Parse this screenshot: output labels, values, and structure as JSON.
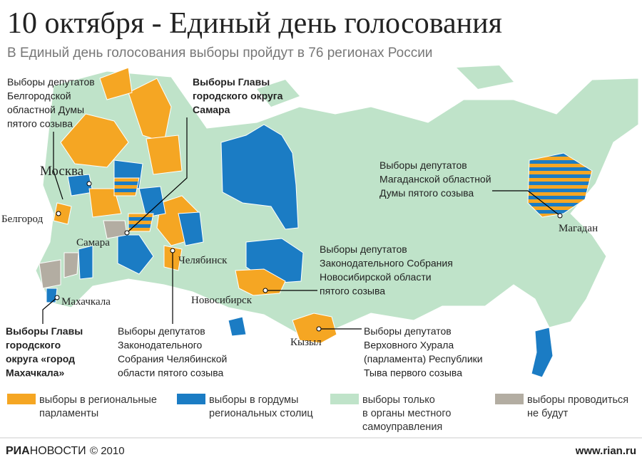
{
  "header": {
    "title": "10 октября - Единый день голосования",
    "subtitle": "В Единый день голосования выборы пройдут в 76 регионах России"
  },
  "map": {
    "cities": [
      "Москва",
      "Белгород",
      "Самара",
      "Махачкала",
      "Челябинск",
      "Новосибирск",
      "Кызыл",
      "Магадан"
    ],
    "annotations": [
      [
        "Выборы депутатов",
        "Белгородской",
        "областной Думы",
        "пятого созыва"
      ],
      [
        "Выборы Главы",
        "городского округа",
        "Самара"
      ],
      [
        "Выборы депутатов",
        "Магаданской областной",
        "Думы пятого созыва"
      ],
      [
        "Выборы депутатов",
        "Законодательного Собрания",
        "Новосибирской области",
        "пятого созыва"
      ],
      [
        "Выборы Главы",
        "городского",
        "округа «город",
        "Махачкала»"
      ],
      [
        "Выборы депутатов",
        "Законодательного",
        "Собрания Челябинской",
        "области пятого созыва"
      ],
      [
        "Выборы депутатов",
        "Верховного Хурала",
        "(парламента) Республики",
        "Тыва первого созыва"
      ]
    ]
  },
  "legend": [
    {
      "color": "#f5a623",
      "label": [
        "выборы в региональные",
        "парламенты"
      ]
    },
    {
      "color": "#1b7cc4",
      "label": [
        "выборы в гордумы",
        "региональных столиц"
      ]
    },
    {
      "color": "#bfe3c9",
      "label": [
        "выборы только",
        "в органы местного",
        "самоуправления"
      ]
    },
    {
      "color": "#b3ada2",
      "label": [
        "выборы проводиться",
        "не будут"
      ]
    }
  ],
  "footer": {
    "logo": [
      "РИА",
      "НОВОСТИ"
    ],
    "copyright": "© 2010",
    "url": "www.rian.ru"
  }
}
